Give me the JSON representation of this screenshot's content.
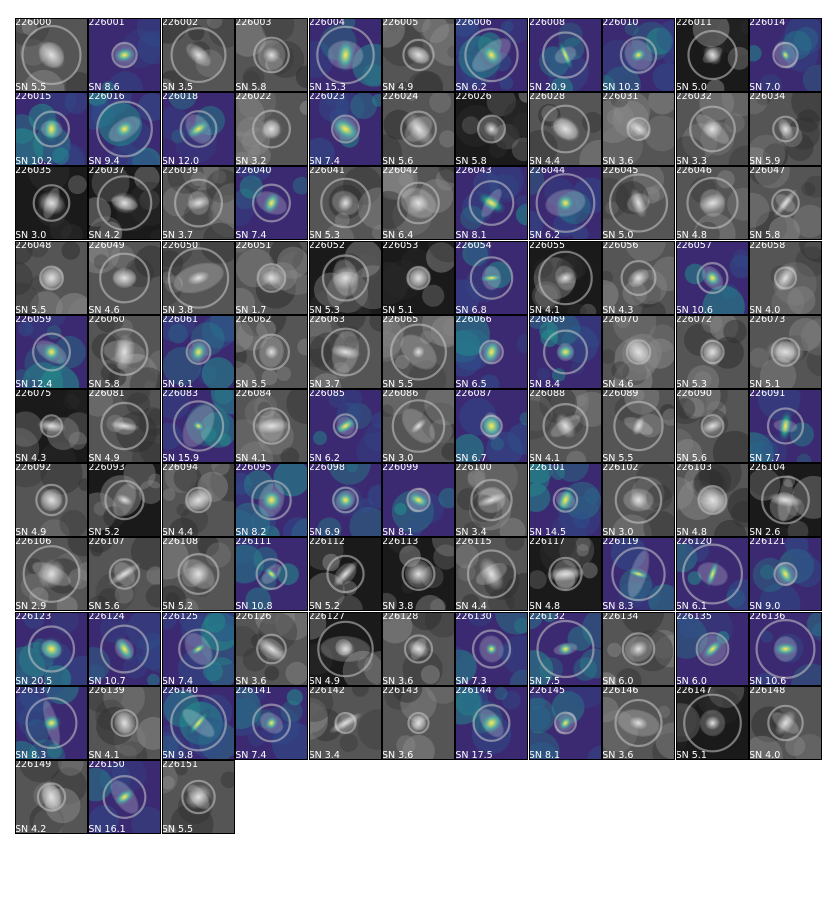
{
  "panels": [
    {
      "id": "226000",
      "sn": "SN 5.5",
      "cmap": "gray"
    },
    {
      "id": "226001",
      "sn": "SN 8.6",
      "cmap": "viridis"
    },
    {
      "id": "226002",
      "sn": "SN 3.5",
      "cmap": "gray"
    },
    {
      "id": "226003",
      "sn": "SN 5.8",
      "cmap": "gray"
    },
    {
      "id": "226004",
      "sn": "SN 15.3",
      "cmap": "viridis"
    },
    {
      "id": "226005",
      "sn": "SN 4.9",
      "cmap": "gray"
    },
    {
      "id": "226006",
      "sn": "SN 6.2",
      "cmap": "viridis"
    },
    {
      "id": "226008",
      "sn": "SN 20.9",
      "cmap": "viridis"
    },
    {
      "id": "226010",
      "sn": "SN 10.3",
      "cmap": "viridis"
    },
    {
      "id": "226011",
      "sn": "SN 5.0",
      "cmap": "gray"
    },
    {
      "id": "226014",
      "sn": "SN 7.0",
      "cmap": "viridis"
    },
    {
      "id": "226015",
      "sn": "SN 10.2",
      "cmap": "viridis"
    },
    {
      "id": "226016",
      "sn": "SN 9.4",
      "cmap": "viridis"
    },
    {
      "id": "226018",
      "sn": "SN 12.0",
      "cmap": "viridis"
    },
    {
      "id": "226022",
      "sn": "SN 3.2",
      "cmap": "gray"
    },
    {
      "id": "226023",
      "sn": "SN 7.4",
      "cmap": "viridis"
    },
    {
      "id": "226024",
      "sn": "SN 5.6",
      "cmap": "gray"
    },
    {
      "id": "226026",
      "sn": "SN 5.8",
      "cmap": "gray"
    },
    {
      "id": "226028",
      "sn": "SN 4.4",
      "cmap": "gray"
    },
    {
      "id": "226031",
      "sn": "SN 3.6",
      "cmap": "gray"
    },
    {
      "id": "226032",
      "sn": "SN 3.3",
      "cmap": "gray"
    },
    {
      "id": "226034",
      "sn": "SN 5.9",
      "cmap": "gray"
    },
    {
      "id": "226035",
      "sn": "SN 3.0",
      "cmap": "gray"
    },
    {
      "id": "226037",
      "sn": "SN 4.2",
      "cmap": "gray"
    },
    {
      "id": "226039",
      "sn": "SN 3.7",
      "cmap": "gray"
    },
    {
      "id": "226040",
      "sn": "SN 7.4",
      "cmap": "viridis"
    },
    {
      "id": "226041",
      "sn": "SN 5.3",
      "cmap": "gray"
    },
    {
      "id": "226042",
      "sn": "SN 6.4",
      "cmap": "gray"
    },
    {
      "id": "226043",
      "sn": "SN 8.1",
      "cmap": "viridis"
    },
    {
      "id": "226044",
      "sn": "SN 6.2",
      "cmap": "viridis"
    },
    {
      "id": "226045",
      "sn": "SN 5.0",
      "cmap": "gray"
    },
    {
      "id": "226046",
      "sn": "SN 4.8",
      "cmap": "gray"
    },
    {
      "id": "226047",
      "sn": "SN 5.8",
      "cmap": "gray"
    },
    {
      "id": "226048",
      "sn": "SN 5.5",
      "cmap": "gray"
    },
    {
      "id": "226049",
      "sn": "SN 4.6",
      "cmap": "gray"
    },
    {
      "id": "226050",
      "sn": "SN 3.8",
      "cmap": "gray"
    },
    {
      "id": "226051",
      "sn": "SN 1.7",
      "cmap": "gray"
    },
    {
      "id": "226052",
      "sn": "SN 5.3",
      "cmap": "gray"
    },
    {
      "id": "226053",
      "sn": "SN 5.1",
      "cmap": "gray"
    },
    {
      "id": "226054",
      "sn": "SN 6.8",
      "cmap": "viridis"
    },
    {
      "id": "226055",
      "sn": "SN 4.1",
      "cmap": "gray"
    },
    {
      "id": "226056",
      "sn": "SN 4.3",
      "cmap": "gray"
    },
    {
      "id": "226057",
      "sn": "SN 10.6",
      "cmap": "viridis"
    },
    {
      "id": "226058",
      "sn": "SN 4.0",
      "cmap": "gray"
    },
    {
      "id": "226059",
      "sn": "SN 12.4",
      "cmap": "viridis"
    },
    {
      "id": "226060",
      "sn": "SN 5.8",
      "cmap": "gray"
    },
    {
      "id": "226061",
      "sn": "SN 6.1",
      "cmap": "viridis"
    },
    {
      "id": "226062",
      "sn": "SN 5.5",
      "cmap": "gray"
    },
    {
      "id": "226063",
      "sn": "SN 3.7",
      "cmap": "gray"
    },
    {
      "id": "226065",
      "sn": "SN 5.5",
      "cmap": "gray"
    },
    {
      "id": "226066",
      "sn": "SN 6.5",
      "cmap": "viridis"
    },
    {
      "id": "226069",
      "sn": "SN 8.4",
      "cmap": "viridis"
    },
    {
      "id": "226070",
      "sn": "SN 4.6",
      "cmap": "gray"
    },
    {
      "id": "226072",
      "sn": "SN 5.3",
      "cmap": "gray"
    },
    {
      "id": "226073",
      "sn": "SN 5.1",
      "cmap": "gray"
    },
    {
      "id": "226075",
      "sn": "SN 4.3",
      "cmap": "gray"
    },
    {
      "id": "226081",
      "sn": "SN 4.9",
      "cmap": "gray"
    },
    {
      "id": "226083",
      "sn": "SN 15.9",
      "cmap": "viridis"
    },
    {
      "id": "226084",
      "sn": "SN 4.1",
      "cmap": "gray"
    },
    {
      "id": "226085",
      "sn": "SN 6.2",
      "cmap": "viridis"
    },
    {
      "id": "226086",
      "sn": "SN 3.0",
      "cmap": "gray"
    },
    {
      "id": "226087",
      "sn": "SN 6.7",
      "cmap": "viridis"
    },
    {
      "id": "226088",
      "sn": "SN 4.1",
      "cmap": "gray"
    },
    {
      "id": "226089",
      "sn": "SN 5.5",
      "cmap": "gray"
    },
    {
      "id": "226090",
      "sn": "SN 5.6",
      "cmap": "gray"
    },
    {
      "id": "226091",
      "sn": "SN 7.7",
      "cmap": "viridis"
    },
    {
      "id": "226092",
      "sn": "SN 4.9",
      "cmap": "gray"
    },
    {
      "id": "226093",
      "sn": "SN 5.2",
      "cmap": "gray"
    },
    {
      "id": "226094",
      "sn": "SN 4.4",
      "cmap": "gray"
    },
    {
      "id": "226095",
      "sn": "SN 8.2",
      "cmap": "viridis"
    },
    {
      "id": "226098",
      "sn": "SN 6.9",
      "cmap": "viridis"
    },
    {
      "id": "226099",
      "sn": "SN 8.1",
      "cmap": "viridis"
    },
    {
      "id": "226100",
      "sn": "SN 3.4",
      "cmap": "gray"
    },
    {
      "id": "226101",
      "sn": "SN 14.5",
      "cmap": "viridis"
    },
    {
      "id": "226102",
      "sn": "SN 3.0",
      "cmap": "gray"
    },
    {
      "id": "226103",
      "sn": "SN 4.8",
      "cmap": "gray"
    },
    {
      "id": "226104",
      "sn": "SN 2.6",
      "cmap": "gray"
    },
    {
      "id": "226106",
      "sn": "SN 2.9",
      "cmap": "gray"
    },
    {
      "id": "226107",
      "sn": "SN 5.6",
      "cmap": "gray"
    },
    {
      "id": "226108",
      "sn": "SN 5.2",
      "cmap": "gray"
    },
    {
      "id": "226111",
      "sn": "SN 10.8",
      "cmap": "viridis"
    },
    {
      "id": "226112",
      "sn": "SN 5.2",
      "cmap": "gray"
    },
    {
      "id": "226113",
      "sn": "SN 3.8",
      "cmap": "gray"
    },
    {
      "id": "226115",
      "sn": "SN 4.4",
      "cmap": "gray"
    },
    {
      "id": "226117",
      "sn": "SN 4.8",
      "cmap": "gray"
    },
    {
      "id": "226119",
      "sn": "SN 8.3",
      "cmap": "viridis"
    },
    {
      "id": "226120",
      "sn": "SN 6.1",
      "cmap": "viridis"
    },
    {
      "id": "226121",
      "sn": "SN 9.0",
      "cmap": "viridis"
    },
    {
      "id": "226123",
      "sn": "SN 20.5",
      "cmap": "viridis"
    },
    {
      "id": "226124",
      "sn": "SN 10.7",
      "cmap": "viridis"
    },
    {
      "id": "226125",
      "sn": "SN 7.4",
      "cmap": "viridis"
    },
    {
      "id": "226126",
      "sn": "SN 3.6",
      "cmap": "gray"
    },
    {
      "id": "226127",
      "sn": "SN 4.9",
      "cmap": "gray"
    },
    {
      "id": "226128",
      "sn": "SN 3.6",
      "cmap": "gray"
    },
    {
      "id": "226130",
      "sn": "SN 7.3",
      "cmap": "viridis"
    },
    {
      "id": "226132",
      "sn": "SN 7.5",
      "cmap": "viridis"
    },
    {
      "id": "226134",
      "sn": "SN 6.0",
      "cmap": "gray"
    },
    {
      "id": "226135",
      "sn": "SN 6.0",
      "cmap": "viridis"
    },
    {
      "id": "226136",
      "sn": "SN 10.6",
      "cmap": "viridis"
    },
    {
      "id": "226137",
      "sn": "SN 8.3",
      "cmap": "viridis"
    },
    {
      "id": "226139",
      "sn": "SN 4.1",
      "cmap": "gray"
    },
    {
      "id": "226140",
      "sn": "SN 9.8",
      "cmap": "viridis"
    },
    {
      "id": "226141",
      "sn": "SN 7.4",
      "cmap": "viridis"
    },
    {
      "id": "226142",
      "sn": "SN 3.4",
      "cmap": "gray"
    },
    {
      "id": "226143",
      "sn": "SN 3.6",
      "cmap": "gray"
    },
    {
      "id": "226144",
      "sn": "SN 17.5",
      "cmap": "viridis"
    },
    {
      "id": "226145",
      "sn": "SN 8.1",
      "cmap": "viridis"
    },
    {
      "id": "226146",
      "sn": "SN 3.6",
      "cmap": "gray"
    },
    {
      "id": "226147",
      "sn": "SN 5.1",
      "cmap": "gray"
    },
    {
      "id": "226148",
      "sn": "SN 4.0",
      "cmap": "gray"
    },
    {
      "id": "226149",
      "sn": "SN 4.2",
      "cmap": "gray"
    },
    {
      "id": "226150",
      "sn": "SN 16.1",
      "cmap": "viridis"
    },
    {
      "id": "226151",
      "sn": "SN 5.5",
      "cmap": "gray"
    }
  ],
  "colors": {
    "page_background": "#ffffff",
    "label_text": "#ffffff",
    "panel_border": "#000000",
    "viridis_low": "#3b2a72",
    "viridis_mid": "#21918c",
    "viridis_high": "#fde725",
    "gray_low": "#1a1a1a",
    "gray_high": "#d9d9d9",
    "aperture_ring": "#c8c8c8"
  }
}
